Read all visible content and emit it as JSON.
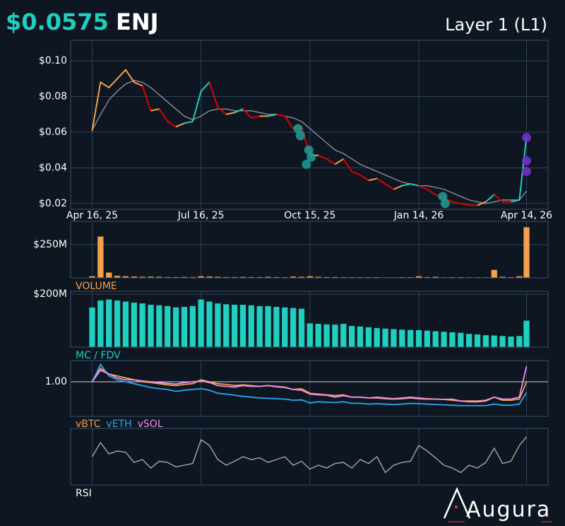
{
  "header": {
    "price": "$0.0575",
    "symbol": "ENJ",
    "category": "Layer 1 (L1)"
  },
  "logo": "Augura",
  "chart_data": {
    "x": [
      "2025-04-16",
      "2025-04-23",
      "2025-04-30",
      "2025-05-07",
      "2025-05-14",
      "2025-05-21",
      "2025-05-28",
      "2025-06-04",
      "2025-06-11",
      "2025-06-18",
      "2025-06-25",
      "2025-07-02",
      "2025-07-09",
      "2025-07-16",
      "2025-07-23",
      "2025-07-30",
      "2025-08-06",
      "2025-08-13",
      "2025-08-20",
      "2025-08-27",
      "2025-09-03",
      "2025-09-10",
      "2025-09-17",
      "2025-09-24",
      "2025-10-01",
      "2025-10-08",
      "2025-10-15",
      "2025-10-22",
      "2025-10-29",
      "2025-11-05",
      "2025-11-12",
      "2025-11-19",
      "2025-11-26",
      "2025-12-03",
      "2025-12-10",
      "2025-12-17",
      "2025-12-24",
      "2025-12-31",
      "2026-01-07",
      "2026-01-14",
      "2026-01-21",
      "2026-01-28",
      "2026-02-04",
      "2026-02-11",
      "2026-02-18",
      "2026-02-25",
      "2026-03-04",
      "2026-03-11",
      "2026-03-18",
      "2026-03-25",
      "2026-04-01",
      "2026-04-08",
      "2026-04-14"
    ],
    "xlim": [
      "2025-03-29",
      "2026-05-02"
    ],
    "xticks": [
      {
        "value": "2025-04-16",
        "label": "Apr 16, 25"
      },
      {
        "value": "2025-07-16",
        "label": "Jul 16, 25"
      },
      {
        "value": "2025-10-15",
        "label": "Oct 15, 25"
      },
      {
        "value": "2026-01-14",
        "label": "Jan 14, 26"
      },
      {
        "value": "2026-04-14",
        "label": "Apr 14, 26"
      }
    ],
    "panels": [
      {
        "type": "line",
        "ylim": [
          0.0168,
          0.1115
        ],
        "yticks": [
          {
            "value": 0.02,
            "label": "$0.02"
          },
          {
            "value": 0.04,
            "label": "$0.04"
          },
          {
            "value": 0.06,
            "label": "$0.06"
          },
          {
            "value": 0.08,
            "label": "$0.08"
          },
          {
            "value": 0.1,
            "label": "$0.10"
          }
        ],
        "series": [
          {
            "color": "#8a8f98",
            "values": [
              0.061,
              0.07,
              0.078,
              0.083,
              0.087,
              0.089,
              0.088,
              0.085,
              0.081,
              0.077,
              0.073,
              0.069,
              0.067,
              0.069,
              0.072,
              0.073,
              0.073,
              0.072,
              0.072,
              0.072,
              0.071,
              0.07,
              0.07,
              0.069,
              0.068,
              0.066,
              0.062,
              0.058,
              0.054,
              0.05,
              0.048,
              0.045,
              0.042,
              0.04,
              0.038,
              0.036,
              0.034,
              0.032,
              0.031,
              0.03,
              0.03,
              0.029,
              0.028,
              0.026,
              0.024,
              0.022,
              0.021,
              0.02,
              0.021,
              0.022,
              0.022,
              0.022,
              0.027
            ]
          },
          {
            "values": [
              0.061,
              0.088,
              0.085,
              0.09,
              0.095,
              0.088,
              0.086,
              0.072,
              0.073,
              0.066,
              0.063,
              0.065,
              0.066,
              0.083,
              0.088,
              0.074,
              0.07,
              0.071,
              0.073,
              0.068,
              0.069,
              0.069,
              0.07,
              0.069,
              0.062,
              0.063,
              0.047,
              0.047,
              0.045,
              0.042,
              0.045,
              0.038,
              0.036,
              0.033,
              0.034,
              0.031,
              0.028,
              0.03,
              0.031,
              0.03,
              0.028,
              0.025,
              0.023,
              0.021,
              0.02,
              0.019,
              0.019,
              0.021,
              0.025,
              0.021,
              0.021,
              0.022,
              0.0575
            ],
            "colors": [
              "#f5a04a",
              "#f5a04a",
              "#f5a04a",
              "#f5a04a",
              "#f5a04a",
              "#f5a04a",
              "#f5a04a",
              "#e00000",
              "#f5a04a",
              "#e00000",
              "#e00000",
              "#f5a04a",
              "#1fcfc0",
              "#1fcfc0",
              "#1fcfc0",
              "#e00000",
              "#e00000",
              "#f5a04a",
              "#1fcfc0",
              "#e00000",
              "#e00000",
              "#f5a04a",
              "#1fcfc0",
              "#e00000",
              "#e00000",
              "#e00000",
              "#e00000",
              "#f5a04a",
              "#e00000",
              "#e00000",
              "#f5a04a",
              "#e00000",
              "#e00000",
              "#e00000",
              "#f5a04a",
              "#e00000",
              "#e00000",
              "#f5a04a",
              "#1fcfc0",
              "#1fcfc0",
              "#e00000",
              "#e00000",
              "#e00000",
              "#e00000",
              "#e00000",
              "#e00000",
              "#e00000",
              "#f5a04a",
              "#1fcfc0",
              "#e00000",
              "#e00000",
              "#1fcfc0",
              "#1fcfc0"
            ]
          },
          {
            "type": "scatter",
            "x": [
              "2025-10-05",
              "2025-10-07",
              "2025-10-14",
              "2025-10-16",
              "2025-10-12",
              "2026-02-03",
              "2026-02-05",
              "2026-04-14",
              "2026-04-14",
              "2026-04-14"
            ],
            "values": [
              0.062,
              0.058,
              0.05,
              0.046,
              0.042,
              0.024,
              0.02,
              0.057,
              0.044,
              0.038
            ],
            "colors": [
              "#1f9e94",
              "#1f9e94",
              "#1f9e94",
              "#1f9e94",
              "#1f9e94",
              "#1f9e94",
              "#1f9e94",
              "#7a2fd0",
              "#7a2fd0",
              "#7a2fd0"
            ]
          }
        ]
      },
      {
        "type": "bar",
        "label": "VOLUME",
        "label_color": "#f5a04a",
        "ylim": [
          0,
          425000000
        ],
        "yticks": [
          {
            "value": 250000000,
            "label": "$250M"
          }
        ],
        "series": [
          {
            "color": "#f5a04a",
            "values": [
              12000000,
              310000000,
              40000000,
              15000000,
              12000000,
              10000000,
              8000000,
              9000000,
              8000000,
              6000000,
              6000000,
              7000000,
              6000000,
              12000000,
              10000000,
              8000000,
              6000000,
              6000000,
              7000000,
              6000000,
              6000000,
              8000000,
              6000000,
              5000000,
              10000000,
              8000000,
              12000000,
              8000000,
              6000000,
              6000000,
              5000000,
              5000000,
              5000000,
              5000000,
              5000000,
              4000000,
              4000000,
              5000000,
              5000000,
              12000000,
              6000000,
              8000000,
              4000000,
              5000000,
              5000000,
              4000000,
              4000000,
              4000000,
              60000000,
              8000000,
              5000000,
              12000000,
              380000000
            ]
          }
        ]
      },
      {
        "type": "bar",
        "label": "MC / FDV",
        "label_color": "#1fcfc0",
        "ylim": [
          0,
          211000000
        ],
        "yticks": [
          {
            "value": 200000000,
            "label": "$200M"
          }
        ],
        "series": [
          {
            "color": "#1fcfc0",
            "values": [
              150000000,
              176000000,
              180000000,
              176000000,
              172000000,
              168000000,
              165000000,
              160000000,
              158000000,
              155000000,
              150000000,
              152000000,
              155000000,
              180000000,
              172000000,
              165000000,
              162000000,
              160000000,
              160000000,
              158000000,
              155000000,
              155000000,
              152000000,
              150000000,
              148000000,
              145000000,
              90000000,
              88000000,
              86000000,
              85000000,
              88000000,
              80000000,
              78000000,
              75000000,
              72000000,
              70000000,
              68000000,
              66000000,
              65000000,
              64000000,
              62000000,
              60000000,
              58000000,
              56000000,
              54000000,
              50000000,
              48000000,
              45000000,
              44000000,
              42000000,
              40000000,
              42000000,
              100000000
            ]
          }
        ]
      },
      {
        "type": "line",
        "ylim": [
          0.1,
          1.55
        ],
        "grid_color": "#d8d8d8",
        "yticks": [
          {
            "value": 1,
            "label": "1.00"
          }
        ],
        "series": [
          {
            "name": "vBTC",
            "color": "#f5a04a",
            "values": [
              1.0,
              1.35,
              1.2,
              1.15,
              1.1,
              1.05,
              1.0,
              0.98,
              0.95,
              0.92,
              0.9,
              0.93,
              0.95,
              1.05,
              1.0,
              0.95,
              0.93,
              0.9,
              0.92,
              0.9,
              0.88,
              0.9,
              0.88,
              0.86,
              0.8,
              0.82,
              0.7,
              0.68,
              0.66,
              0.64,
              0.66,
              0.6,
              0.6,
              0.58,
              0.6,
              0.58,
              0.56,
              0.58,
              0.6,
              0.58,
              0.56,
              0.55,
              0.54,
              0.52,
              0.5,
              0.5,
              0.5,
              0.52,
              0.6,
              0.52,
              0.52,
              0.55,
              1.0
            ]
          },
          {
            "name": "vETH",
            "color": "#2aa7f0",
            "values": [
              1.0,
              1.45,
              1.15,
              1.05,
              1.0,
              0.95,
              0.9,
              0.85,
              0.82,
              0.8,
              0.75,
              0.78,
              0.8,
              0.82,
              0.78,
              0.7,
              0.68,
              0.65,
              0.62,
              0.6,
              0.58,
              0.57,
              0.56,
              0.55,
              0.52,
              0.53,
              0.45,
              0.48,
              0.47,
              0.46,
              0.48,
              0.44,
              0.44,
              0.42,
              0.43,
              0.42,
              0.41,
              0.42,
              0.44,
              0.43,
              0.42,
              0.41,
              0.4,
              0.39,
              0.38,
              0.38,
              0.38,
              0.38,
              0.42,
              0.39,
              0.39,
              0.42,
              0.72
            ]
          },
          {
            "name": "vSOL",
            "color": "#ee8ef0",
            "values": [
              1.0,
              1.3,
              1.2,
              1.1,
              1.05,
              1.05,
              1.02,
              1.0,
              0.98,
              0.96,
              0.94,
              0.98,
              1.0,
              1.02,
              0.98,
              0.9,
              0.88,
              0.86,
              0.9,
              0.88,
              0.88,
              0.9,
              0.87,
              0.85,
              0.8,
              0.78,
              0.68,
              0.66,
              0.65,
              0.6,
              0.64,
              0.6,
              0.6,
              0.58,
              0.58,
              0.56,
              0.55,
              0.56,
              0.58,
              0.56,
              0.55,
              0.55,
              0.54,
              0.55,
              0.5,
              0.48,
              0.48,
              0.5,
              0.6,
              0.55,
              0.55,
              0.6,
              1.4
            ]
          }
        ]
      },
      {
        "type": "line",
        "label": "RSI",
        "label_color": "#ffffff",
        "ylim": [
          0,
          100
        ],
        "yticks": [],
        "series": [
          {
            "color": "#a8a8a8",
            "values": [
              50,
              75,
              55,
              60,
              58,
              40,
              45,
              30,
              42,
              40,
              32,
              35,
              38,
              80,
              70,
              45,
              35,
              42,
              50,
              45,
              48,
              40,
              45,
              50,
              35,
              42,
              28,
              35,
              30,
              38,
              40,
              30,
              45,
              38,
              50,
              22,
              35,
              40,
              42,
              70,
              60,
              48,
              35,
              30,
              22,
              35,
              30,
              40,
              65,
              38,
              42,
              70,
              85
            ]
          }
        ]
      }
    ]
  }
}
